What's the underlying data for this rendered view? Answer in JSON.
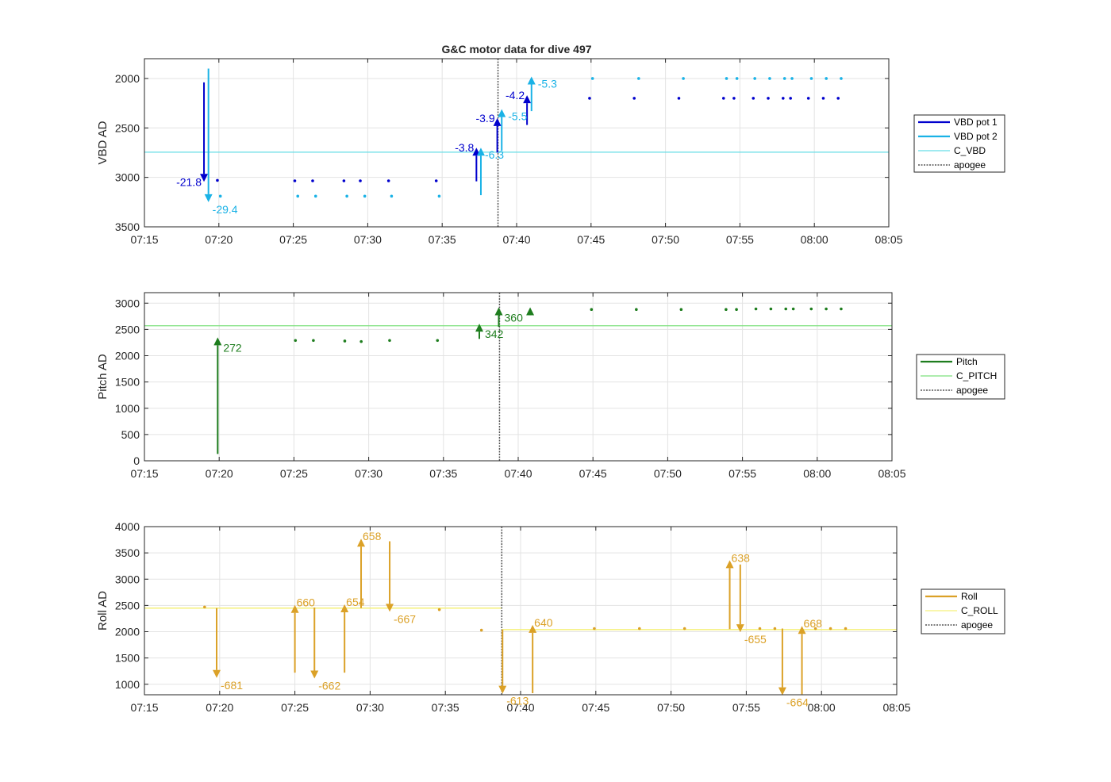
{
  "figure": {
    "title": "G&C motor data for dive 497"
  },
  "chart_data": [
    {
      "type": "scatter",
      "id": "vbd",
      "ylabel": "VBD AD",
      "xlim": [
        "07:15",
        "08:05"
      ],
      "ylim": [
        3500,
        1800
      ],
      "y_reversed": true,
      "xticks": [
        "07:15",
        "07:20",
        "07:25",
        "07:30",
        "07:35",
        "07:40",
        "07:45",
        "07:50",
        "07:55",
        "08:00",
        "08:05"
      ],
      "yticks": [
        2000,
        2500,
        3000,
        3500
      ],
      "grid": true,
      "legend_placement": "outside-right",
      "colors": {
        "pot1": "#0000cd",
        "pot2": "#1ab2e6",
        "c_line": "#66dde6",
        "apogee": "#555555"
      },
      "legend": [
        "VBD pot 1",
        "VBD pot 2",
        "C_VBD",
        "apogee"
      ],
      "c_value": 2745,
      "apogee": "07:38.75",
      "series": [
        {
          "name": "VBD pot 1",
          "points": [
            [
              "07:19.9",
              3030
            ],
            [
              "07:25.1",
              3035
            ],
            [
              "07:26.3",
              3035
            ],
            [
              "07:28.4",
              3035
            ],
            [
              "07:29.5",
              3035
            ],
            [
              "07:31.4",
              3035
            ],
            [
              "07:34.6",
              3035
            ],
            [
              "07:44.9",
              2200
            ],
            [
              "07:47.9",
              2200
            ],
            [
              "07:50.9",
              2200
            ],
            [
              "07:53.9",
              2200
            ],
            [
              "07:54.6",
              2200
            ],
            [
              "07:55.9",
              2200
            ],
            [
              "07:56.9",
              2200
            ],
            [
              "07:57.9",
              2200
            ],
            [
              "07:58.4",
              2200
            ],
            [
              "07:59.6",
              2200
            ],
            [
              "08:00.6",
              2200
            ],
            [
              "08:01.6",
              2200
            ]
          ]
        },
        {
          "name": "VBD pot 2",
          "points": [
            [
              "07:20.1",
              3190
            ],
            [
              "07:25.3",
              3190
            ],
            [
              "07:26.5",
              3190
            ],
            [
              "07:28.6",
              3190
            ],
            [
              "07:29.8",
              3190
            ],
            [
              "07:31.6",
              3190
            ],
            [
              "07:34.8",
              3190
            ],
            [
              "07:45.1",
              2000
            ],
            [
              "07:48.2",
              2000
            ],
            [
              "07:51.2",
              2000
            ],
            [
              "07:54.1",
              2000
            ],
            [
              "07:54.8",
              2000
            ],
            [
              "07:56.0",
              2000
            ],
            [
              "07:57.0",
              2000
            ],
            [
              "07:58.0",
              2000
            ],
            [
              "07:58.5",
              2000
            ],
            [
              "07:59.8",
              2000
            ],
            [
              "08:00.8",
              2000
            ],
            [
              "08:01.8",
              2000
            ]
          ]
        }
      ],
      "arrows": [
        {
          "series": "pot1",
          "x": "07:19.0",
          "from": 2040,
          "to": 3045,
          "label": "-21.8",
          "label_side": "left"
        },
        {
          "series": "pot2",
          "x": "07:19.3",
          "from": 1900,
          "to": 3250,
          "label": "-29.4",
          "label_side": "below-right"
        },
        {
          "series": "pot1",
          "x": "07:37.3",
          "from": 3040,
          "to": 2700,
          "label": "-3.8",
          "label_side": "left"
        },
        {
          "series": "pot2",
          "x": "07:37.6",
          "from": 3180,
          "to": 2700,
          "label": "-6.3",
          "label_side": "below-right"
        },
        {
          "series": "pot1",
          "x": "07:38.7",
          "from": 2750,
          "to": 2400,
          "label": "-3.9",
          "label_side": "left"
        },
        {
          "series": "pot2",
          "x": "07:39.0",
          "from": 2730,
          "to": 2310,
          "label": "-5.5",
          "label_side": "right"
        },
        {
          "series": "pot1",
          "x": "07:40.7",
          "from": 2470,
          "to": 2170,
          "label": "-4.2",
          "label_side": "left"
        },
        {
          "series": "pot2",
          "x": "07:41.0",
          "from": 2330,
          "to": 1980,
          "label": "-5.3",
          "label_side": "right"
        }
      ]
    },
    {
      "type": "scatter",
      "id": "pitch",
      "ylabel": "Pitch AD",
      "xlim": [
        "07:15",
        "08:05"
      ],
      "ylim": [
        0,
        3200
      ],
      "xticks": [
        "07:15",
        "07:20",
        "07:25",
        "07:30",
        "07:35",
        "07:40",
        "07:45",
        "07:50",
        "07:55",
        "08:00",
        "08:05"
      ],
      "yticks": [
        0,
        500,
        1000,
        1500,
        2000,
        2500,
        3000
      ],
      "grid": true,
      "legend_placement": "outside-right",
      "colors": {
        "pitch": "#1e7d1e",
        "c_line": "#7ce07c",
        "apogee": "#555555"
      },
      "legend": [
        "Pitch",
        "C_PITCH",
        "apogee"
      ],
      "c_value": 2570,
      "apogee": "07:38.75",
      "series": [
        {
          "name": "Pitch",
          "points": [
            [
              "07:25.1",
              2290
            ],
            [
              "07:26.3",
              2290
            ],
            [
              "07:28.4",
              2280
            ],
            [
              "07:29.5",
              2270
            ],
            [
              "07:31.4",
              2290
            ],
            [
              "07:34.6",
              2290
            ],
            [
              "07:44.9",
              2880
            ],
            [
              "07:47.9",
              2880
            ],
            [
              "07:50.9",
              2880
            ],
            [
              "07:53.9",
              2880
            ],
            [
              "07:54.6",
              2880
            ],
            [
              "07:55.9",
              2890
            ],
            [
              "07:56.9",
              2890
            ],
            [
              "07:57.9",
              2890
            ],
            [
              "07:58.4",
              2890
            ],
            [
              "07:59.6",
              2890
            ],
            [
              "08:00.6",
              2890
            ],
            [
              "08:01.6",
              2890
            ]
          ]
        }
      ],
      "arrows": [
        {
          "series": "pitch",
          "x": "07:19.9",
          "from": 130,
          "to": 2350,
          "label": "272",
          "label_side": "right"
        },
        {
          "series": "pitch",
          "x": "07:37.4",
          "from": 2320,
          "to": 2610,
          "label": "342",
          "label_side": "below-right"
        },
        {
          "series": "pitch",
          "x": "07:38.7",
          "from": 2550,
          "to": 2920,
          "label": "360",
          "label_side": "below-right"
        },
        {
          "series": "pitch",
          "x": "07:40.8",
          "from": 2840,
          "to": 2920,
          "label": "",
          "label_side": "right"
        }
      ]
    },
    {
      "type": "scatter",
      "id": "roll",
      "ylabel": "Roll AD",
      "xlim": [
        "07:15",
        "08:05"
      ],
      "ylim": [
        800,
        4000
      ],
      "xticks": [
        "07:15",
        "07:20",
        "07:25",
        "07:30",
        "07:35",
        "07:40",
        "07:45",
        "07:50",
        "07:55",
        "08:00",
        "08:05"
      ],
      "yticks": [
        1000,
        1500,
        2000,
        2500,
        3000,
        3500,
        4000
      ],
      "grid": true,
      "legend_placement": "outside-right",
      "colors": {
        "roll": "#dba127",
        "c_line": "#f5f07a",
        "apogee": "#555555"
      },
      "legend": [
        "Roll",
        "C_ROLL",
        "apogee"
      ],
      "c_segments": [
        {
          "x0": "07:15",
          "x1": "07:38.75",
          "y": 2450
        },
        {
          "x0": "07:38.75",
          "x1": "08:05",
          "y": 2040
        }
      ],
      "apogee": "07:38.75",
      "series": [
        {
          "name": "Roll",
          "points": [
            [
              "07:19.0",
              2470
            ],
            [
              "07:34.6",
              2420
            ],
            [
              "07:37.4",
              2030
            ],
            [
              "07:44.9",
              2060
            ],
            [
              "07:47.9",
              2060
            ],
            [
              "07:50.9",
              2060
            ],
            [
              "07:55.9",
              2060
            ],
            [
              "07:56.9",
              2060
            ],
            [
              "07:59.6",
              2060
            ],
            [
              "08:00.6",
              2060
            ],
            [
              "08:01.6",
              2060
            ]
          ]
        }
      ],
      "arrows": [
        {
          "series": "roll",
          "x": "07:19.8",
          "from": 2450,
          "to": 1120,
          "label": "-681",
          "label_side": "below-right"
        },
        {
          "series": "roll",
          "x": "07:25.0",
          "from": 1220,
          "to": 2510,
          "label": "660",
          "label_side": "above-right"
        },
        {
          "series": "roll",
          "x": "07:26.3",
          "from": 2460,
          "to": 1110,
          "label": "-662",
          "label_side": "below-right"
        },
        {
          "series": "roll",
          "x": "07:28.3",
          "from": 1220,
          "to": 2520,
          "label": "654",
          "label_side": "above-right"
        },
        {
          "series": "roll",
          "x": "07:29.4",
          "from": 2450,
          "to": 3770,
          "label": "658",
          "label_side": "above-right"
        },
        {
          "series": "roll",
          "x": "07:31.3",
          "from": 3720,
          "to": 2380,
          "label": "-667",
          "label_side": "below-right"
        },
        {
          "series": "roll",
          "x": "07:38.8",
          "from": 2040,
          "to": 820,
          "label": "-613",
          "label_side": "below-right"
        },
        {
          "series": "roll",
          "x": "07:40.8",
          "from": 830,
          "to": 2130,
          "label": "640",
          "label_side": "above-right"
        },
        {
          "series": "roll",
          "x": "07:53.9",
          "from": 2050,
          "to": 3360,
          "label": "638",
          "label_side": "above-right"
        },
        {
          "series": "roll",
          "x": "07:54.6",
          "from": 3280,
          "to": 1990,
          "label": "-655",
          "label_side": "below-right"
        },
        {
          "series": "roll",
          "x": "07:57.4",
          "from": 2060,
          "to": 790,
          "label": "-664",
          "label_side": "below-right"
        },
        {
          "series": "roll",
          "x": "07:58.7",
          "from": 810,
          "to": 2110,
          "label": "668",
          "label_side": "above-right"
        }
      ]
    }
  ]
}
